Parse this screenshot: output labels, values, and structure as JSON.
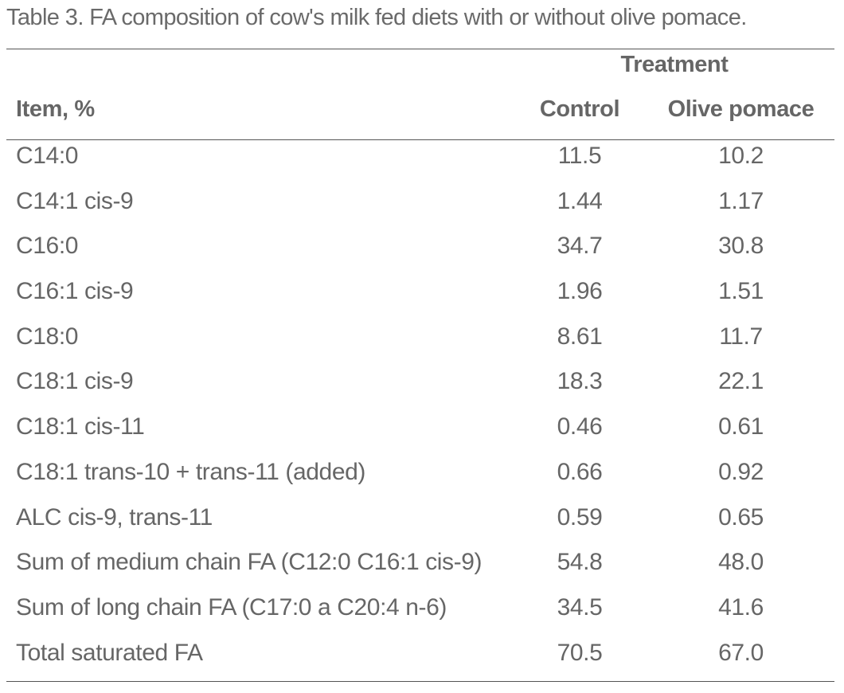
{
  "caption": "Table 3. FA composition of cow's milk fed diets with or without olive pomace.",
  "header": {
    "group_label": "Treatment",
    "item_label": "Item, %",
    "control_label": "Control",
    "olive_label": "Olive pomace"
  },
  "rows": [
    {
      "item": "C14:0",
      "control": "11.5",
      "olive": "10.2"
    },
    {
      "item": "C14:1 cis-9",
      "control": "1.44",
      "olive": "1.17"
    },
    {
      "item": "C16:0",
      "control": "34.7",
      "olive": "30.8"
    },
    {
      "item": "C16:1 cis-9",
      "control": "1.96",
      "olive": "1.51"
    },
    {
      "item": "C18:0",
      "control": "8.61",
      "olive": "11.7"
    },
    {
      "item": "C18:1 cis-9",
      "control": "18.3",
      "olive": "22.1"
    },
    {
      "item": "C18:1 cis-11",
      "control": "0.46",
      "olive": "0.61"
    },
    {
      "item": "C18:1 trans-10 + trans-11 (added)",
      "control": "0.66",
      "olive": "0.92"
    },
    {
      "item": "ALC cis-9, trans-11",
      "control": "0.59",
      "olive": "0.65"
    },
    {
      "item": "Sum of medium chain FA (C12:0 C16:1 cis-9)",
      "control": "54.8",
      "olive": "48.0"
    },
    {
      "item": "Sum of long chain FA (C17:0 a C20:4 n-6)",
      "control": "34.5",
      "olive": "41.6"
    },
    {
      "item": "Total saturated FA",
      "control": "70.5",
      "olive": "67.0"
    }
  ]
}
